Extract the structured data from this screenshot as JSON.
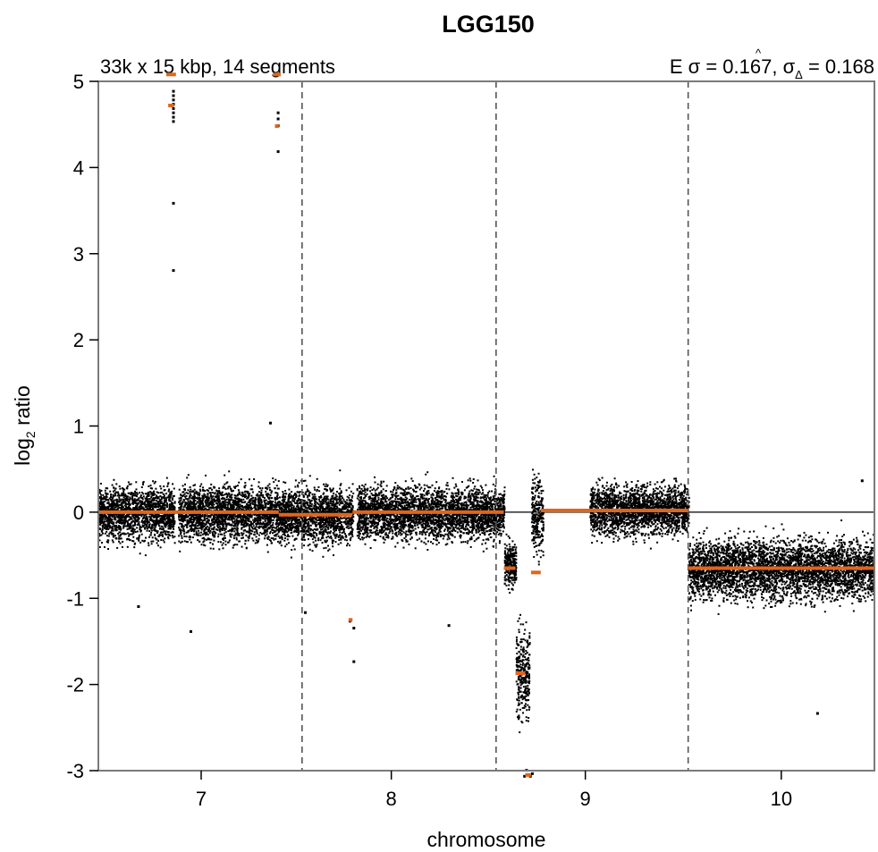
{
  "chart_data": {
    "type": "scatter",
    "title": "LGG150",
    "subtitle_left": "33k x 15 kbp, 14 segments",
    "subtitle_right": {
      "prefix": "E σ = 0.167, ",
      "symbol": "σ",
      "hat": "^",
      "subscript": "Δ",
      "suffix": " = 0.168"
    },
    "xlabel": "chromosome",
    "ylabel": {
      "main": "log",
      "sub": "2",
      "rest": " ratio"
    },
    "xlim": [
      6.47,
      10.47
    ],
    "ylim": [
      -3,
      5
    ],
    "x_ticks": [
      "7",
      "8",
      "9",
      "10"
    ],
    "x_tick_values": [
      7.0,
      7.98,
      8.98,
      9.99
    ],
    "y_ticks": [
      "-3",
      "-2",
      "-1",
      "0",
      "1",
      "2",
      "3",
      "4",
      "5"
    ],
    "y_tick_values": [
      -3,
      -2,
      -1,
      0,
      1,
      2,
      3,
      4,
      5
    ],
    "chromosome_boundaries": [
      7.52,
      8.52,
      9.51
    ],
    "reference_line": 0,
    "colors": {
      "points": "#000000",
      "segments": "#e0651c",
      "boundaries": "#555555",
      "reference": "#000000",
      "frame": "#7a7a7a"
    },
    "points_clusters": [
      {
        "x": [
          6.47,
          6.86
        ],
        "center": 0.0,
        "spread": 0.26
      },
      {
        "x": [
          6.88,
          7.4
        ],
        "center": 0.0,
        "spread": 0.26
      },
      {
        "x": [
          7.4,
          7.78
        ],
        "center": -0.03,
        "spread": 0.26
      },
      {
        "x": [
          7.8,
          8.52
        ],
        "center": 0.0,
        "spread": 0.25
      },
      {
        "x": [
          8.52,
          8.56
        ],
        "center": 0.0,
        "spread": 0.25
      },
      {
        "x": [
          8.56,
          8.62
        ],
        "center": -0.6,
        "spread": 0.22
      },
      {
        "x": [
          8.62,
          8.69
        ],
        "center": -1.85,
        "spread": 0.45
      },
      {
        "x": [
          8.7,
          8.76
        ],
        "center": -0.05,
        "spread": 0.35
      },
      {
        "x": [
          9.0,
          9.51
        ],
        "center": 0.04,
        "spread": 0.24
      },
      {
        "x": [
          9.51,
          10.47
        ],
        "center": -0.65,
        "spread": 0.28
      }
    ],
    "outliers": [
      {
        "x": 6.85,
        "y": 4.9
      },
      {
        "x": 6.85,
        "y": 4.85
      },
      {
        "x": 6.85,
        "y": 4.8
      },
      {
        "x": 6.85,
        "y": 4.75
      },
      {
        "x": 6.85,
        "y": 4.7
      },
      {
        "x": 6.85,
        "y": 4.65
      },
      {
        "x": 6.85,
        "y": 4.6
      },
      {
        "x": 6.85,
        "y": 4.55
      },
      {
        "x": 6.85,
        "y": 3.6
      },
      {
        "x": 6.85,
        "y": 2.82
      },
      {
        "x": 6.84,
        "y": 5.08
      },
      {
        "x": 7.39,
        "y": 4.65
      },
      {
        "x": 7.39,
        "y": 4.58
      },
      {
        "x": 7.39,
        "y": 4.5
      },
      {
        "x": 7.39,
        "y": 4.2
      },
      {
        "x": 7.35,
        "y": 1.05
      },
      {
        "x": 6.67,
        "y": -1.08
      },
      {
        "x": 6.94,
        "y": -1.37
      },
      {
        "x": 7.53,
        "y": -1.15
      },
      {
        "x": 7.76,
        "y": -1.25
      },
      {
        "x": 7.78,
        "y": -1.33
      },
      {
        "x": 7.78,
        "y": -1.72
      },
      {
        "x": 8.27,
        "y": -1.3
      },
      {
        "x": 10.17,
        "y": -2.32
      },
      {
        "x": 10.4,
        "y": 0.38
      },
      {
        "x": 8.69,
        "y": -3.05
      },
      {
        "x": 8.66,
        "y": -3.05
      },
      {
        "x": 8.7,
        "y": -3.02
      },
      {
        "x": 8.67,
        "y": -2.98
      }
    ],
    "segments": [
      {
        "x0": 6.47,
        "x1": 7.4,
        "y": 0.0
      },
      {
        "x0": 7.4,
        "x1": 7.78,
        "y": -0.03
      },
      {
        "x0": 7.78,
        "x1": 8.56,
        "y": 0.0
      },
      {
        "x0": 8.56,
        "x1": 8.62,
        "y": -0.65
      },
      {
        "x0": 8.62,
        "x1": 8.67,
        "y": -1.87
      },
      {
        "x0": 8.67,
        "x1": 8.7,
        "y": -3.05
      },
      {
        "x0": 8.7,
        "x1": 8.75,
        "y": -0.7
      },
      {
        "x0": 8.75,
        "x1": 9.51,
        "y": 0.02
      },
      {
        "x0": 9.51,
        "x1": 10.47,
        "y": -0.65
      },
      {
        "x0": 6.82,
        "x1": 6.87,
        "y": 5.08
      },
      {
        "x0": 6.83,
        "x1": 6.86,
        "y": 4.72
      },
      {
        "x0": 7.37,
        "x1": 7.41,
        "y": 5.08
      },
      {
        "x0": 7.38,
        "x1": 7.4,
        "y": 4.48
      },
      {
        "x0": 7.76,
        "x1": 7.78,
        "y": -1.25
      }
    ]
  }
}
